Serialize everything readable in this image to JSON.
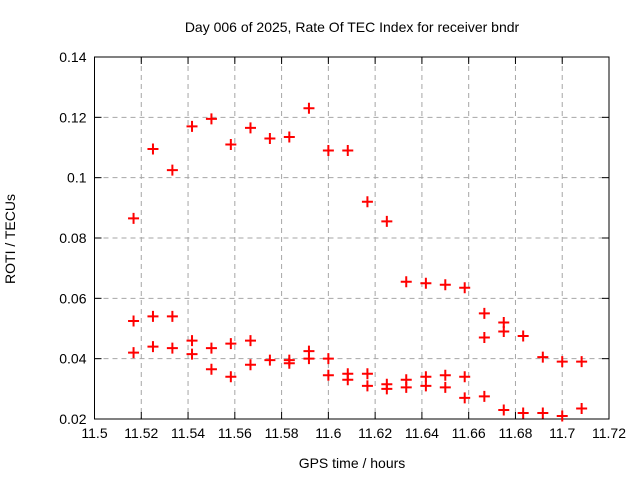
{
  "chart_data": {
    "type": "scatter",
    "title": "Day 006 of 2025, Rate Of TEC Index for receiver bndr",
    "xlabel": "GPS time / hours",
    "ylabel": "ROTI / TECUs",
    "xlim": [
      11.5,
      11.72
    ],
    "ylim": [
      0.02,
      0.14
    ],
    "x_ticks": [
      11.5,
      11.52,
      11.54,
      11.56,
      11.58,
      11.6,
      11.62,
      11.64,
      11.66,
      11.68,
      11.7,
      11.72
    ],
    "x_tick_labels": [
      "11.5",
      "11.52",
      "11.54",
      "11.56",
      "11.58",
      "11.6",
      "11.62",
      "11.64",
      "11.66",
      "11.68",
      "11.7",
      "11.72"
    ],
    "y_ticks": [
      0.02,
      0.04,
      0.06,
      0.08,
      0.1,
      0.12,
      0.14
    ],
    "y_tick_labels": [
      "0.02",
      "0.04",
      "0.06",
      "0.08",
      "0.1",
      "0.12",
      "0.14"
    ],
    "grid": true,
    "legend": "none",
    "marker": {
      "shape": "plus",
      "color": "#ff0000",
      "size": 11,
      "stroke_width": 2
    },
    "colors": {
      "border": "#000000",
      "grid": "#a6a6a6",
      "background": "#ffffff",
      "text": "#000000"
    },
    "series": [
      {
        "name": "ROTI",
        "points": [
          [
            11.5167,
            0.0865
          ],
          [
            11.5167,
            0.0525
          ],
          [
            11.5167,
            0.042
          ],
          [
            11.525,
            0.1095
          ],
          [
            11.525,
            0.054
          ],
          [
            11.525,
            0.044
          ],
          [
            11.5333,
            0.1025
          ],
          [
            11.5333,
            0.054
          ],
          [
            11.5333,
            0.0435
          ],
          [
            11.5417,
            0.117
          ],
          [
            11.5417,
            0.046
          ],
          [
            11.5417,
            0.0415
          ],
          [
            11.55,
            0.1195
          ],
          [
            11.55,
            0.0435
          ],
          [
            11.55,
            0.0365
          ],
          [
            11.5583,
            0.111
          ],
          [
            11.5583,
            0.045
          ],
          [
            11.5583,
            0.034
          ],
          [
            11.5667,
            0.1165
          ],
          [
            11.5667,
            0.046
          ],
          [
            11.5667,
            0.038
          ],
          [
            11.575,
            0.113
          ],
          [
            11.575,
            0.0395
          ],
          [
            11.5833,
            0.1135
          ],
          [
            11.5833,
            0.0395
          ],
          [
            11.5833,
            0.0385
          ],
          [
            11.5917,
            0.123
          ],
          [
            11.5917,
            0.0425
          ],
          [
            11.5917,
            0.04
          ],
          [
            11.6,
            0.109
          ],
          [
            11.6,
            0.04
          ],
          [
            11.6,
            0.0345
          ],
          [
            11.6083,
            0.109
          ],
          [
            11.6083,
            0.035
          ],
          [
            11.6083,
            0.033
          ],
          [
            11.6167,
            0.092
          ],
          [
            11.6167,
            0.035
          ],
          [
            11.6167,
            0.031
          ],
          [
            11.625,
            0.0855
          ],
          [
            11.625,
            0.0315
          ],
          [
            11.625,
            0.03
          ],
          [
            11.6333,
            0.0655
          ],
          [
            11.6333,
            0.033
          ],
          [
            11.6333,
            0.0305
          ],
          [
            11.6417,
            0.065
          ],
          [
            11.6417,
            0.034
          ],
          [
            11.6417,
            0.031
          ],
          [
            11.65,
            0.0645
          ],
          [
            11.65,
            0.0345
          ],
          [
            11.65,
            0.0305
          ],
          [
            11.6583,
            0.0635
          ],
          [
            11.6583,
            0.034
          ],
          [
            11.6583,
            0.027
          ],
          [
            11.6667,
            0.055
          ],
          [
            11.6667,
            0.047
          ],
          [
            11.6667,
            0.0275
          ],
          [
            11.675,
            0.052
          ],
          [
            11.675,
            0.049
          ],
          [
            11.675,
            0.023
          ],
          [
            11.6833,
            0.0475
          ],
          [
            11.6833,
            0.022
          ],
          [
            11.6917,
            0.0405
          ],
          [
            11.6917,
            0.022
          ],
          [
            11.7,
            0.039
          ],
          [
            11.7,
            0.021
          ],
          [
            11.7083,
            0.039
          ],
          [
            11.7083,
            0.0235
          ]
        ]
      }
    ]
  }
}
